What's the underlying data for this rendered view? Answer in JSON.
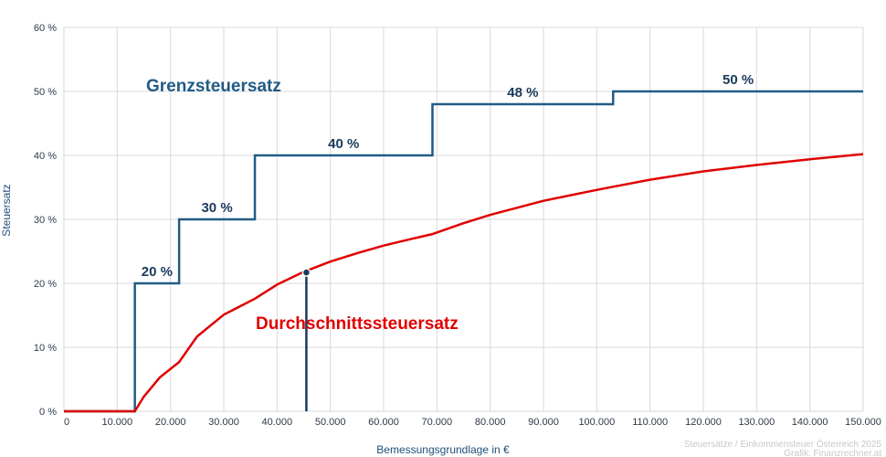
{
  "chart_data": {
    "type": "line",
    "xlabel": "Bemessungsgrundlage in €",
    "ylabel": "Steuersatz",
    "xlim": [
      0,
      150000
    ],
    "ylim": [
      0,
      60
    ],
    "x_ticks": [
      {
        "value": 0,
        "label": "0"
      },
      {
        "value": 10000,
        "label": "10.000"
      },
      {
        "value": 20000,
        "label": "20.000"
      },
      {
        "value": 30000,
        "label": "30.000"
      },
      {
        "value": 40000,
        "label": "40.000"
      },
      {
        "value": 50000,
        "label": "50.000"
      },
      {
        "value": 60000,
        "label": "60.000"
      },
      {
        "value": 70000,
        "label": "70.000"
      },
      {
        "value": 80000,
        "label": "80.000"
      },
      {
        "value": 90000,
        "label": "90.000"
      },
      {
        "value": 100000,
        "label": "100.000"
      },
      {
        "value": 110000,
        "label": "110.000"
      },
      {
        "value": 120000,
        "label": "120.000"
      },
      {
        "value": 130000,
        "label": "130.000"
      },
      {
        "value": 140000,
        "label": "140.000"
      },
      {
        "value": 150000,
        "label": "150.000"
      }
    ],
    "y_ticks": [
      {
        "value": 0,
        "label": "0 %"
      },
      {
        "value": 10,
        "label": "10 %"
      },
      {
        "value": 20,
        "label": "20 %"
      },
      {
        "value": 30,
        "label": "30 %"
      },
      {
        "value": 40,
        "label": "40 %"
      },
      {
        "value": 50,
        "label": "50 %"
      },
      {
        "value": 60,
        "label": "60 %"
      }
    ],
    "grid": true,
    "series": [
      {
        "name": "Grenzsteuersatz",
        "color": "#215b86",
        "kind": "step",
        "brackets": [
          {
            "from": 0,
            "to": 13308,
            "rate": 0
          },
          {
            "from": 13308,
            "to": 21617,
            "rate": 20,
            "label": "20 %"
          },
          {
            "from": 21617,
            "to": 35836,
            "rate": 30,
            "label": "30 %"
          },
          {
            "from": 35836,
            "to": 69166,
            "rate": 40,
            "label": "40 %"
          },
          {
            "from": 69166,
            "to": 103072,
            "rate": 48,
            "label": "48 %"
          },
          {
            "from": 103072,
            "to": 150000,
            "rate": 50,
            "label": "50 %"
          }
        ]
      },
      {
        "name": "Durchschnittssteuersatz",
        "color": "#e00000",
        "kind": "line",
        "x": [
          0,
          13308,
          15000,
          18000,
          21617,
          25000,
          30000,
          35836,
          40000,
          45000,
          50000,
          55000,
          60000,
          65000,
          69166,
          75000,
          80000,
          90000,
          100000,
          103072,
          110000,
          120000,
          130000,
          140000,
          150000
        ],
        "y": [
          0,
          0,
          2.3,
          5.3,
          7.7,
          11.7,
          15.1,
          17.6,
          19.8,
          21.8,
          23.4,
          24.7,
          25.9,
          26.9,
          27.7,
          29.4,
          30.7,
          32.9,
          34.6,
          35.1,
          36.2,
          37.5,
          38.5,
          39.4,
          40.2
        ]
      }
    ],
    "marker": {
      "x": 45500,
      "y": 21.7,
      "color": "#1a3a5c"
    },
    "credit": [
      "Steuersätze / Einkommensteuer Österreich 2025",
      "Grafik: Finanzrechner.at"
    ]
  }
}
